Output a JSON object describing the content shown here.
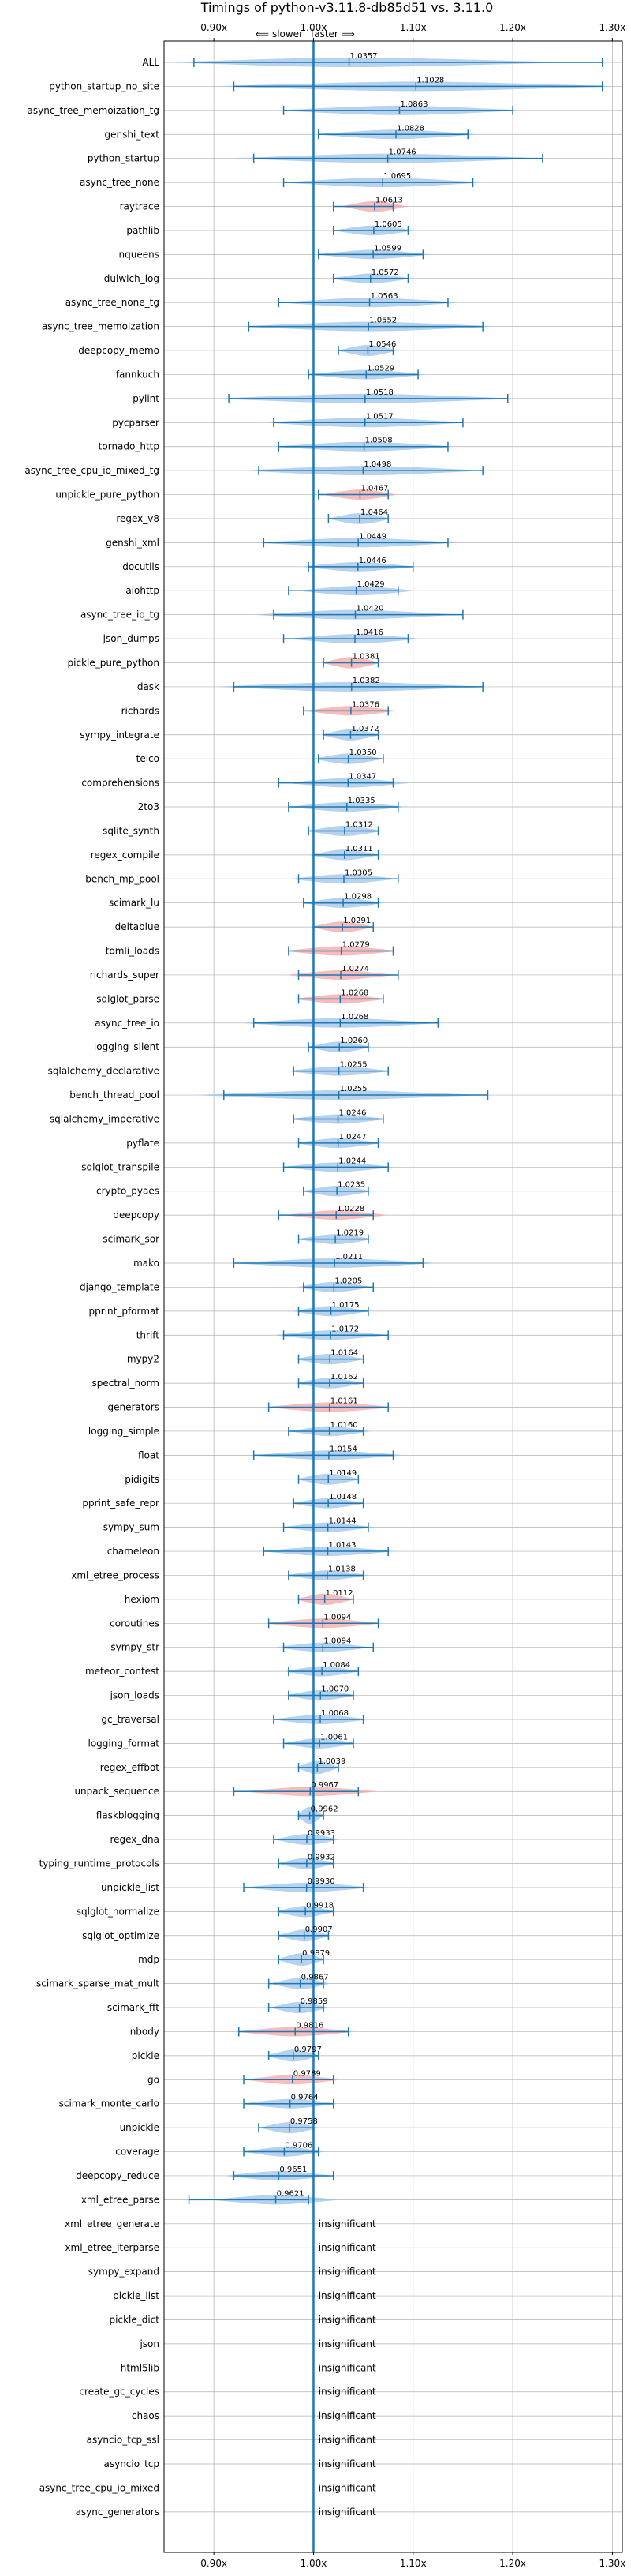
{
  "chart_data": {
    "type": "violin",
    "title": "Timings of python-v3.11.8-db85d51 vs. 3.11.0",
    "direction_note": "⟸ slower faster ⟹",
    "direction_left": "⟸ slower",
    "direction_right": "faster ⟹",
    "xlim": [
      0.85,
      1.31
    ],
    "x_ticks": [
      0.9,
      1.0,
      1.1,
      1.2,
      1.3
    ],
    "x_tick_labels": [
      "0.90x",
      "1.00x",
      "1.10x",
      "1.20x",
      "1.30x"
    ],
    "reference_line": 1.0,
    "grid": true,
    "colors": {
      "faster": "#9dc3e6",
      "slower": "#f4a6a6",
      "whisker": "#1f77b4",
      "ref": "#1f77b4",
      "grid": "#b0b0b0"
    },
    "insignificant_label": "insignificant",
    "benchmarks": [
      {
        "name": "ALL",
        "mean": 1.0357,
        "lo": 0.88,
        "hi": 1.29,
        "color": "faster"
      },
      {
        "name": "python_startup_no_site",
        "mean": 1.1028,
        "lo": 0.92,
        "hi": 1.29,
        "color": "faster"
      },
      {
        "name": "async_tree_memoization_tg",
        "mean": 1.0863,
        "lo": 0.97,
        "hi": 1.2,
        "color": "faster"
      },
      {
        "name": "genshi_text",
        "mean": 1.0828,
        "lo": 1.005,
        "hi": 1.155,
        "color": "faster"
      },
      {
        "name": "python_startup",
        "mean": 1.0746,
        "lo": 0.94,
        "hi": 1.23,
        "color": "faster"
      },
      {
        "name": "async_tree_none",
        "mean": 1.0695,
        "lo": 0.97,
        "hi": 1.16,
        "color": "faster"
      },
      {
        "name": "raytrace",
        "mean": 1.0613,
        "lo": 1.02,
        "hi": 1.08,
        "color": "slower"
      },
      {
        "name": "pathlib",
        "mean": 1.0605,
        "lo": 1.02,
        "hi": 1.095,
        "color": "faster"
      },
      {
        "name": "nqueens",
        "mean": 1.0599,
        "lo": 1.005,
        "hi": 1.11,
        "color": "faster"
      },
      {
        "name": "dulwich_log",
        "mean": 1.0572,
        "lo": 1.02,
        "hi": 1.095,
        "color": "faster"
      },
      {
        "name": "async_tree_none_tg",
        "mean": 1.0563,
        "lo": 0.965,
        "hi": 1.135,
        "color": "faster"
      },
      {
        "name": "async_tree_memoization",
        "mean": 1.0552,
        "lo": 0.935,
        "hi": 1.17,
        "color": "faster"
      },
      {
        "name": "deepcopy_memo",
        "mean": 1.0546,
        "lo": 1.025,
        "hi": 1.08,
        "color": "faster"
      },
      {
        "name": "fannkuch",
        "mean": 1.0529,
        "lo": 0.995,
        "hi": 1.105,
        "color": "faster"
      },
      {
        "name": "pylint",
        "mean": 1.0518,
        "lo": 0.915,
        "hi": 1.195,
        "color": "faster"
      },
      {
        "name": "pycparser",
        "mean": 1.0517,
        "lo": 0.96,
        "hi": 1.15,
        "color": "faster"
      },
      {
        "name": "tornado_http",
        "mean": 1.0508,
        "lo": 0.965,
        "hi": 1.135,
        "color": "faster"
      },
      {
        "name": "async_tree_cpu_io_mixed_tg",
        "mean": 1.0498,
        "lo": 0.945,
        "hi": 1.17,
        "color": "faster"
      },
      {
        "name": "unpickle_pure_python",
        "mean": 1.0467,
        "lo": 1.005,
        "hi": 1.075,
        "color": "slower"
      },
      {
        "name": "regex_v8",
        "mean": 1.0464,
        "lo": 1.015,
        "hi": 1.075,
        "color": "faster"
      },
      {
        "name": "genshi_xml",
        "mean": 1.0449,
        "lo": 0.95,
        "hi": 1.135,
        "color": "faster"
      },
      {
        "name": "docutils",
        "mean": 1.0446,
        "lo": 0.995,
        "hi": 1.1,
        "color": "faster"
      },
      {
        "name": "aiohttp",
        "mean": 1.0429,
        "lo": 0.975,
        "hi": 1.085,
        "color": "faster"
      },
      {
        "name": "async_tree_io_tg",
        "mean": 1.042,
        "lo": 0.96,
        "hi": 1.15,
        "color": "faster"
      },
      {
        "name": "json_dumps",
        "mean": 1.0416,
        "lo": 0.97,
        "hi": 1.095,
        "color": "faster"
      },
      {
        "name": "pickle_pure_python",
        "mean": 1.0381,
        "lo": 1.01,
        "hi": 1.065,
        "color": "slower"
      },
      {
        "name": "dask",
        "mean": 1.0382,
        "lo": 0.92,
        "hi": 1.17,
        "color": "faster"
      },
      {
        "name": "richards",
        "mean": 1.0376,
        "lo": 0.99,
        "hi": 1.075,
        "color": "slower"
      },
      {
        "name": "sympy_integrate",
        "mean": 1.0372,
        "lo": 1.01,
        "hi": 1.065,
        "color": "faster"
      },
      {
        "name": "telco",
        "mean": 1.035,
        "lo": 1.005,
        "hi": 1.07,
        "color": "faster"
      },
      {
        "name": "comprehensions",
        "mean": 1.0347,
        "lo": 0.965,
        "hi": 1.08,
        "color": "faster"
      },
      {
        "name": "2to3",
        "mean": 1.0335,
        "lo": 0.975,
        "hi": 1.085,
        "color": "faster"
      },
      {
        "name": "sqlite_synth",
        "mean": 1.0312,
        "lo": 0.995,
        "hi": 1.065,
        "color": "faster"
      },
      {
        "name": "regex_compile",
        "mean": 1.0311,
        "lo": 1.0,
        "hi": 1.065,
        "color": "faster"
      },
      {
        "name": "bench_mp_pool",
        "mean": 1.0305,
        "lo": 0.985,
        "hi": 1.085,
        "color": "faster"
      },
      {
        "name": "scimark_lu",
        "mean": 1.0298,
        "lo": 0.99,
        "hi": 1.065,
        "color": "faster"
      },
      {
        "name": "deltablue",
        "mean": 1.0291,
        "lo": 1.0,
        "hi": 1.06,
        "color": "slower"
      },
      {
        "name": "tomli_loads",
        "mean": 1.0279,
        "lo": 0.975,
        "hi": 1.08,
        "color": "slower"
      },
      {
        "name": "richards_super",
        "mean": 1.0274,
        "lo": 0.985,
        "hi": 1.085,
        "color": "slower"
      },
      {
        "name": "sqlglot_parse",
        "mean": 1.0268,
        "lo": 0.985,
        "hi": 1.07,
        "color": "slower"
      },
      {
        "name": "async_tree_io",
        "mean": 1.0268,
        "lo": 0.94,
        "hi": 1.125,
        "color": "faster"
      },
      {
        "name": "logging_silent",
        "mean": 1.026,
        "lo": 0.995,
        "hi": 1.055,
        "color": "faster"
      },
      {
        "name": "sqlalchemy_declarative",
        "mean": 1.0255,
        "lo": 0.98,
        "hi": 1.075,
        "color": "faster"
      },
      {
        "name": "bench_thread_pool",
        "mean": 1.0255,
        "lo": 0.91,
        "hi": 1.175,
        "color": "faster"
      },
      {
        "name": "sqlalchemy_imperative",
        "mean": 1.0246,
        "lo": 0.98,
        "hi": 1.07,
        "color": "faster"
      },
      {
        "name": "pyflate",
        "mean": 1.0247,
        "lo": 0.985,
        "hi": 1.065,
        "color": "faster"
      },
      {
        "name": "sqlglot_transpile",
        "mean": 1.0244,
        "lo": 0.97,
        "hi": 1.075,
        "color": "faster"
      },
      {
        "name": "crypto_pyaes",
        "mean": 1.0235,
        "lo": 0.99,
        "hi": 1.055,
        "color": "faster"
      },
      {
        "name": "deepcopy",
        "mean": 1.0228,
        "lo": 0.965,
        "hi": 1.06,
        "color": "slower"
      },
      {
        "name": "scimark_sor",
        "mean": 1.0219,
        "lo": 0.985,
        "hi": 1.055,
        "color": "faster"
      },
      {
        "name": "mako",
        "mean": 1.0211,
        "lo": 0.92,
        "hi": 1.11,
        "color": "faster"
      },
      {
        "name": "django_template",
        "mean": 1.0205,
        "lo": 0.99,
        "hi": 1.06,
        "color": "faster"
      },
      {
        "name": "pprint_pformat",
        "mean": 1.0175,
        "lo": 0.985,
        "hi": 1.055,
        "color": "faster"
      },
      {
        "name": "thrift",
        "mean": 1.0172,
        "lo": 0.97,
        "hi": 1.075,
        "color": "faster"
      },
      {
        "name": "mypy2",
        "mean": 1.0164,
        "lo": 0.985,
        "hi": 1.05,
        "color": "faster"
      },
      {
        "name": "spectral_norm",
        "mean": 1.0162,
        "lo": 0.985,
        "hi": 1.05,
        "color": "faster"
      },
      {
        "name": "generators",
        "mean": 1.0161,
        "lo": 0.955,
        "hi": 1.075,
        "color": "slower"
      },
      {
        "name": "logging_simple",
        "mean": 1.016,
        "lo": 0.975,
        "hi": 1.05,
        "color": "faster"
      },
      {
        "name": "float",
        "mean": 1.0154,
        "lo": 0.94,
        "hi": 1.08,
        "color": "faster"
      },
      {
        "name": "pidigits",
        "mean": 1.0149,
        "lo": 0.985,
        "hi": 1.045,
        "color": "faster"
      },
      {
        "name": "pprint_safe_repr",
        "mean": 1.0148,
        "lo": 0.98,
        "hi": 1.05,
        "color": "faster"
      },
      {
        "name": "sympy_sum",
        "mean": 1.0144,
        "lo": 0.97,
        "hi": 1.055,
        "color": "faster"
      },
      {
        "name": "chameleon",
        "mean": 1.0143,
        "lo": 0.95,
        "hi": 1.075,
        "color": "faster"
      },
      {
        "name": "xml_etree_process",
        "mean": 1.0138,
        "lo": 0.975,
        "hi": 1.05,
        "color": "faster"
      },
      {
        "name": "hexiom",
        "mean": 1.0112,
        "lo": 0.985,
        "hi": 1.04,
        "color": "slower"
      },
      {
        "name": "coroutines",
        "mean": 1.0094,
        "lo": 0.955,
        "hi": 1.065,
        "color": "slower"
      },
      {
        "name": "sympy_str",
        "mean": 1.0094,
        "lo": 0.97,
        "hi": 1.06,
        "color": "faster"
      },
      {
        "name": "meteor_contest",
        "mean": 1.0084,
        "lo": 0.975,
        "hi": 1.045,
        "color": "faster"
      },
      {
        "name": "json_loads",
        "mean": 1.007,
        "lo": 0.975,
        "hi": 1.04,
        "color": "faster"
      },
      {
        "name": "gc_traversal",
        "mean": 1.0068,
        "lo": 0.96,
        "hi": 1.05,
        "color": "faster"
      },
      {
        "name": "logging_format",
        "mean": 1.0061,
        "lo": 0.97,
        "hi": 1.04,
        "color": "faster"
      },
      {
        "name": "regex_effbot",
        "mean": 1.0039,
        "lo": 0.985,
        "hi": 1.025,
        "color": "faster"
      },
      {
        "name": "unpack_sequence",
        "mean": 0.9967,
        "lo": 0.92,
        "hi": 1.045,
        "color": "slower"
      },
      {
        "name": "flaskblogging",
        "mean": 0.9962,
        "lo": 0.985,
        "hi": 1.01,
        "color": "faster"
      },
      {
        "name": "regex_dna",
        "mean": 0.9933,
        "lo": 0.96,
        "hi": 1.02,
        "color": "faster"
      },
      {
        "name": "typing_runtime_protocols",
        "mean": 0.9932,
        "lo": 0.965,
        "hi": 1.02,
        "color": "faster"
      },
      {
        "name": "unpickle_list",
        "mean": 0.993,
        "lo": 0.93,
        "hi": 1.05,
        "color": "faster"
      },
      {
        "name": "sqlglot_normalize",
        "mean": 0.9918,
        "lo": 0.965,
        "hi": 1.02,
        "color": "faster"
      },
      {
        "name": "sqlglot_optimize",
        "mean": 0.9907,
        "lo": 0.965,
        "hi": 1.015,
        "color": "faster"
      },
      {
        "name": "mdp",
        "mean": 0.9879,
        "lo": 0.965,
        "hi": 1.01,
        "color": "faster"
      },
      {
        "name": "scimark_sparse_mat_mult",
        "mean": 0.9867,
        "lo": 0.955,
        "hi": 1.01,
        "color": "faster"
      },
      {
        "name": "scimark_fft",
        "mean": 0.9859,
        "lo": 0.955,
        "hi": 1.01,
        "color": "faster"
      },
      {
        "name": "nbody",
        "mean": 0.9816,
        "lo": 0.925,
        "hi": 1.035,
        "color": "slower"
      },
      {
        "name": "pickle",
        "mean": 0.9797,
        "lo": 0.955,
        "hi": 1.005,
        "color": "faster"
      },
      {
        "name": "go",
        "mean": 0.9789,
        "lo": 0.93,
        "hi": 1.02,
        "color": "slower"
      },
      {
        "name": "scimark_monte_carlo",
        "mean": 0.9764,
        "lo": 0.93,
        "hi": 1.02,
        "color": "faster"
      },
      {
        "name": "unpickle",
        "mean": 0.9758,
        "lo": 0.945,
        "hi": 1.0,
        "color": "faster"
      },
      {
        "name": "coverage",
        "mean": 0.9706,
        "lo": 0.93,
        "hi": 1.005,
        "color": "faster"
      },
      {
        "name": "deepcopy_reduce",
        "mean": 0.9651,
        "lo": 0.92,
        "hi": 1.02,
        "color": "faster"
      },
      {
        "name": "xml_etree_parse",
        "mean": 0.9621,
        "lo": 0.875,
        "hi": 0.995,
        "color": "faster"
      }
    ],
    "insignificant": [
      "xml_etree_generate",
      "xml_etree_iterparse",
      "sympy_expand",
      "pickle_list",
      "pickle_dict",
      "json",
      "html5lib",
      "create_gc_cycles",
      "chaos",
      "asyncio_tcp_ssl",
      "asyncio_tcp",
      "async_tree_cpu_io_mixed",
      "async_generators"
    ]
  }
}
